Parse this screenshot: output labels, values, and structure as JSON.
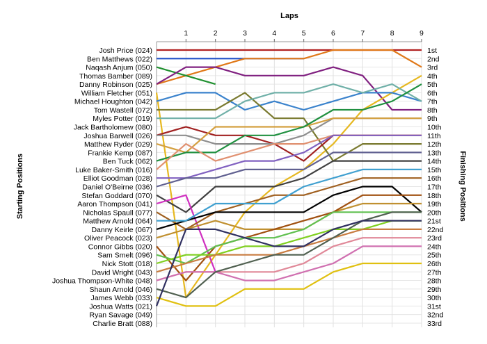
{
  "chart_data": {
    "type": "line",
    "title": "",
    "xlabel": "Laps",
    "ylabel_left": "Starting Positions",
    "ylabel_right": "Finishing Positions",
    "x": [
      0,
      1,
      2,
      3,
      4,
      5,
      6,
      7,
      8,
      9
    ],
    "x_tick_labels": [
      "1",
      "2",
      "3",
      "4",
      "5",
      "6",
      "7",
      "8",
      "9"
    ],
    "y_range": [
      1,
      33
    ],
    "finishing_labels": [
      "1st",
      "2nd",
      "3rd",
      "4th",
      "5th",
      "6th",
      "7th",
      "8th",
      "9th",
      "10th",
      "11th",
      "12th",
      "13th",
      "14th",
      "15th",
      "16th",
      "17th",
      "18th",
      "19th",
      "20th",
      "21st",
      "22nd",
      "23rd",
      "24th",
      "25th",
      "26th",
      "27th",
      "28th",
      "29th",
      "30th",
      "31st",
      "32nd",
      "33rd"
    ],
    "grid": true,
    "series": [
      {
        "name": "Josh Price (024)",
        "color": "#b22222",
        "values": [
          1,
          1,
          1,
          1,
          1,
          1,
          1,
          1,
          1,
          1
        ]
      },
      {
        "name": "Ben Matthews (022)",
        "color": "#2050c8",
        "values": [
          2,
          2,
          2,
          2,
          2,
          2,
          null,
          null,
          null,
          null
        ]
      },
      {
        "name": "Naqash Anjum (050)",
        "color": "#e07818",
        "values": [
          5,
          4,
          3,
          2,
          2,
          2,
          1,
          1,
          1,
          3
        ]
      },
      {
        "name": "Thomas Bamber (089)",
        "color": "#209030",
        "values": [
          3,
          4,
          5,
          null,
          null,
          null,
          null,
          null,
          null,
          null
        ]
      },
      {
        "name": "Danny Robinson (025)",
        "color": "#802080",
        "values": [
          5,
          3,
          3,
          4,
          4,
          4,
          3,
          4,
          8,
          8
        ]
      },
      {
        "name": "William Fletcher (051)",
        "color": "#e6b820",
        "values": [
          6,
          30,
          25,
          20,
          17,
          15,
          12,
          8,
          6,
          4
        ]
      },
      {
        "name": "Michael Houghton (042)",
        "color": "#3a82cc",
        "values": [
          7,
          6,
          6,
          8,
          7,
          8,
          7,
          6,
          6,
          7
        ]
      },
      {
        "name": "Tom Wastell (072)",
        "color": "#7a7a30",
        "values": [
          8,
          8,
          8,
          6,
          9,
          9,
          14,
          12,
          12,
          12
        ]
      },
      {
        "name": "Myles Potter (019)",
        "color": "#70b0a8",
        "values": [
          9,
          9,
          9,
          7,
          6,
          6,
          5,
          6,
          5,
          7
        ]
      },
      {
        "name": "Jack Bartholomew (080)",
        "color": "#a02020",
        "values": [
          11,
          10,
          11,
          11,
          12,
          14,
          11,
          11,
          11,
          11
        ]
      },
      {
        "name": "Joshua Barwell (026)",
        "color": "#8e8e8e",
        "values": [
          11,
          11,
          12,
          12,
          12,
          11,
          9,
          9,
          9,
          9
        ]
      },
      {
        "name": "Matthew Ryder (029)",
        "color": "#d4a040",
        "values": [
          12,
          13,
          10,
          10,
          10,
          10,
          9,
          9,
          9,
          9
        ]
      },
      {
        "name": "Frankie Kemp (087)",
        "color": "#209040",
        "values": [
          14,
          13,
          13,
          11,
          11,
          10,
          8,
          8,
          7,
          5
        ]
      },
      {
        "name": "Ben Tuck (062)",
        "color": "#e09070",
        "values": [
          15,
          12,
          14,
          13,
          12,
          12,
          11,
          11,
          11,
          11
        ]
      },
      {
        "name": "Luke Baker-Smith (016)",
        "color": "#8060c0",
        "values": [
          16,
          16,
          15,
          14,
          14,
          13,
          11,
          11,
          11,
          11
        ]
      },
      {
        "name": "Elliot Goodman (028)",
        "color": "#606090",
        "values": [
          17,
          16,
          16,
          15,
          15,
          15,
          13,
          13,
          13,
          13
        ]
      },
      {
        "name": "Daniel O'Beirne (036)",
        "color": "#404040",
        "values": [
          18,
          20,
          17,
          17,
          17,
          16,
          14,
          14,
          14,
          14
        ]
      },
      {
        "name": "Stefan Goddard (070)",
        "color": "#d030c0",
        "values": [
          19,
          18,
          27,
          null,
          null,
          null,
          null,
          null,
          null,
          null
        ]
      },
      {
        "name": "Aaron Thompson (041)",
        "color": "#a06020",
        "values": [
          20,
          22,
          20,
          19,
          18,
          18,
          17,
          16,
          16,
          16
        ]
      },
      {
        "name": "Nicholas Spaull (077)",
        "color": "#000000",
        "values": [
          22,
          21,
          20,
          20,
          20,
          20,
          18,
          17,
          17,
          20
        ]
      },
      {
        "name": "Matthew Arnold (064)",
        "color": "#40a0d0",
        "values": [
          21,
          21,
          19,
          19,
          19,
          17,
          16,
          15,
          15,
          15
        ]
      },
      {
        "name": "Danny Keirle (067)",
        "color": "#c09030",
        "values": [
          23,
          22,
          21,
          22,
          22,
          22,
          20,
          19,
          19,
          19
        ]
      },
      {
        "name": "Oliver Peacock (023)",
        "color": "#a05010",
        "values": [
          24,
          28,
          24,
          23,
          22,
          21,
          20,
          18,
          18,
          18
        ]
      },
      {
        "name": "Connor Gibbs (020)",
        "color": "#60c050",
        "values": [
          25,
          26,
          24,
          23,
          23,
          22,
          20,
          20,
          20,
          20
        ]
      },
      {
        "name": "Sam Smelt (096)",
        "color": "#80d020",
        "values": [
          26,
          25,
          25,
          24,
          24,
          23,
          22,
          22,
          21,
          21
        ]
      },
      {
        "name": "Nick Stott (018)",
        "color": "#c87c40",
        "values": [
          27,
          26,
          25,
          25,
          25,
          24,
          23,
          22,
          22,
          22
        ]
      },
      {
        "name": "David Wright (043)",
        "color": "#e08898",
        "values": [
          28,
          27,
          27,
          27,
          27,
          26,
          24,
          23,
          23,
          23
        ]
      },
      {
        "name": "Joshua Thompson-White (048)",
        "color": "#d070b0",
        "values": [
          28,
          27,
          27,
          28,
          28,
          27,
          26,
          24,
          24,
          24
        ]
      },
      {
        "name": "Shaun Arnold (046)",
        "color": "#506050",
        "values": [
          29,
          30,
          27,
          26,
          25,
          25,
          23,
          21,
          20,
          20
        ]
      },
      {
        "name": "James Webb (033)",
        "color": "#e0c010",
        "values": [
          30,
          31,
          31,
          29,
          29,
          29,
          27,
          26,
          26,
          26
        ]
      },
      {
        "name": "Joshua Watts (021)",
        "color": "#303060",
        "values": [
          31,
          22,
          22,
          23,
          24,
          24,
          22,
          21,
          21,
          21
        ]
      }
    ]
  },
  "left_labels": [
    "Josh Price (024)",
    "Ben Matthews (022)",
    "Naqash Anjum (050)",
    "Thomas Bamber (089)",
    "Danny Robinson (025)",
    "William Fletcher (051)",
    "Michael Houghton (042)",
    "Tom Wastell (072)",
    "Myles Potter (019)",
    "Jack Bartholomew (080)",
    "Joshua Barwell (026)",
    "Matthew Ryder (029)",
    "Frankie Kemp (087)",
    "Ben Tuck (062)",
    "Luke Baker-Smith (016)",
    "Elliot Goodman (028)",
    "Daniel O'Beirne (036)",
    "Stefan Goddard (070)",
    "Aaron Thompson (041)",
    "Nicholas Spaull (077)",
    "Matthew Arnold (064)",
    "Danny Keirle (067)",
    "Oliver Peacock (023)",
    "Connor Gibbs (020)",
    "Sam Smelt (096)",
    "Nick Stott (018)",
    "David Wright (043)",
    "Joshua Thompson-White (048)",
    "Shaun Arnold (046)",
    "James Webb (033)",
    "Joshua Watts (021)",
    "Ryan Savage (049)",
    "Charlie Bratt (088)"
  ]
}
